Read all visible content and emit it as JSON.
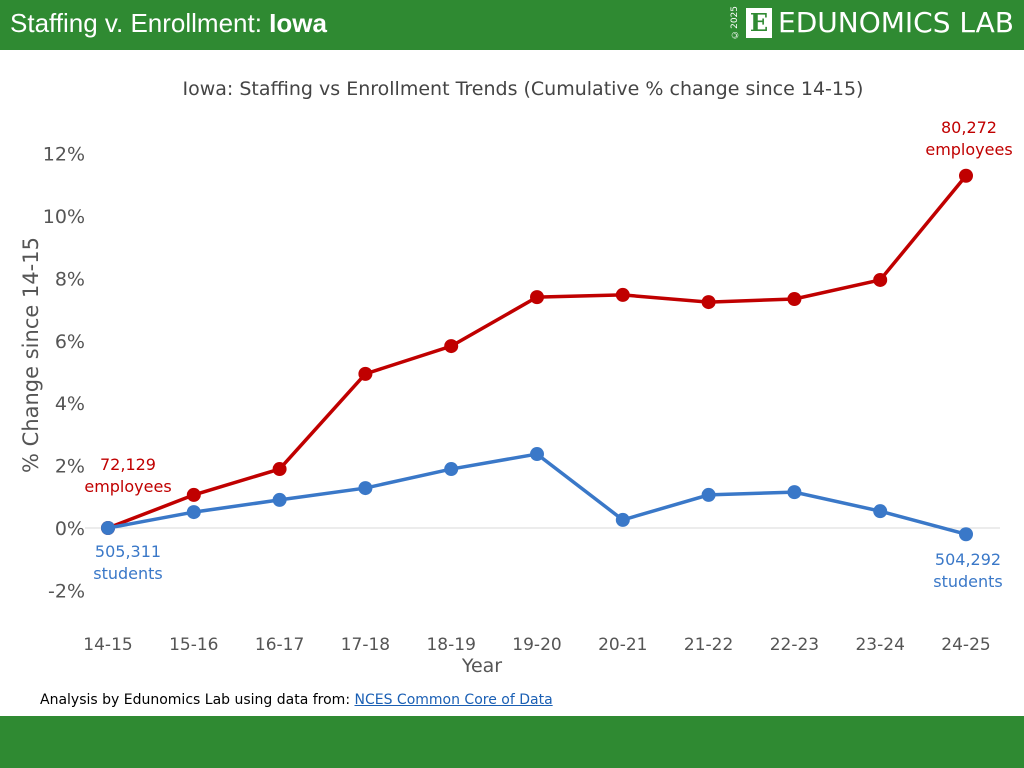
{
  "header": {
    "title_prefix": "Staffing v. Enrollment: ",
    "title_state": "Iowa",
    "logo_copyright": "©2025",
    "logo_letter": "E",
    "logo_text": "EDUNOMICS LAB"
  },
  "footer": {
    "text": "Analysis by Edunomics Lab using data from: ",
    "link": "NCES Common Core of Data"
  },
  "colors": {
    "brand": "#2f8a32",
    "staff": "#c00000",
    "enroll": "#3a78c8"
  },
  "chart_data": {
    "type": "line",
    "title": "Iowa: Staffing vs Enrollment Trends (Cumulative % change since 14-15)",
    "xlabel": "Year",
    "ylabel": "% Change since 14-15",
    "categories": [
      "14-15",
      "15-16",
      "16-17",
      "17-18",
      "18-19",
      "19-20",
      "20-21",
      "21-22",
      "22-23",
      "23-24",
      "24-25"
    ],
    "ylim": [
      -2,
      12
    ],
    "yticks": [
      "-2%",
      "0%",
      "2%",
      "4%",
      "6%",
      "8%",
      "10%",
      "12%"
    ],
    "series": [
      {
        "key": "staff",
        "values": [
          0,
          1.06,
          1.89,
          4.94,
          5.83,
          7.4,
          7.47,
          7.24,
          7.34,
          7.95,
          11.29
        ]
      },
      {
        "key": "enroll",
        "values": [
          0,
          0.51,
          0.9,
          1.28,
          1.89,
          2.37,
          0.26,
          1.06,
          1.15,
          0.54,
          -0.2
        ]
      }
    ],
    "annotations": {
      "staff_start": [
        "72,129",
        "employees"
      ],
      "staff_end": [
        "80,272",
        "employees"
      ],
      "enroll_start": [
        "505,311",
        "students"
      ],
      "enroll_end": [
        "504,292",
        "students"
      ]
    }
  }
}
